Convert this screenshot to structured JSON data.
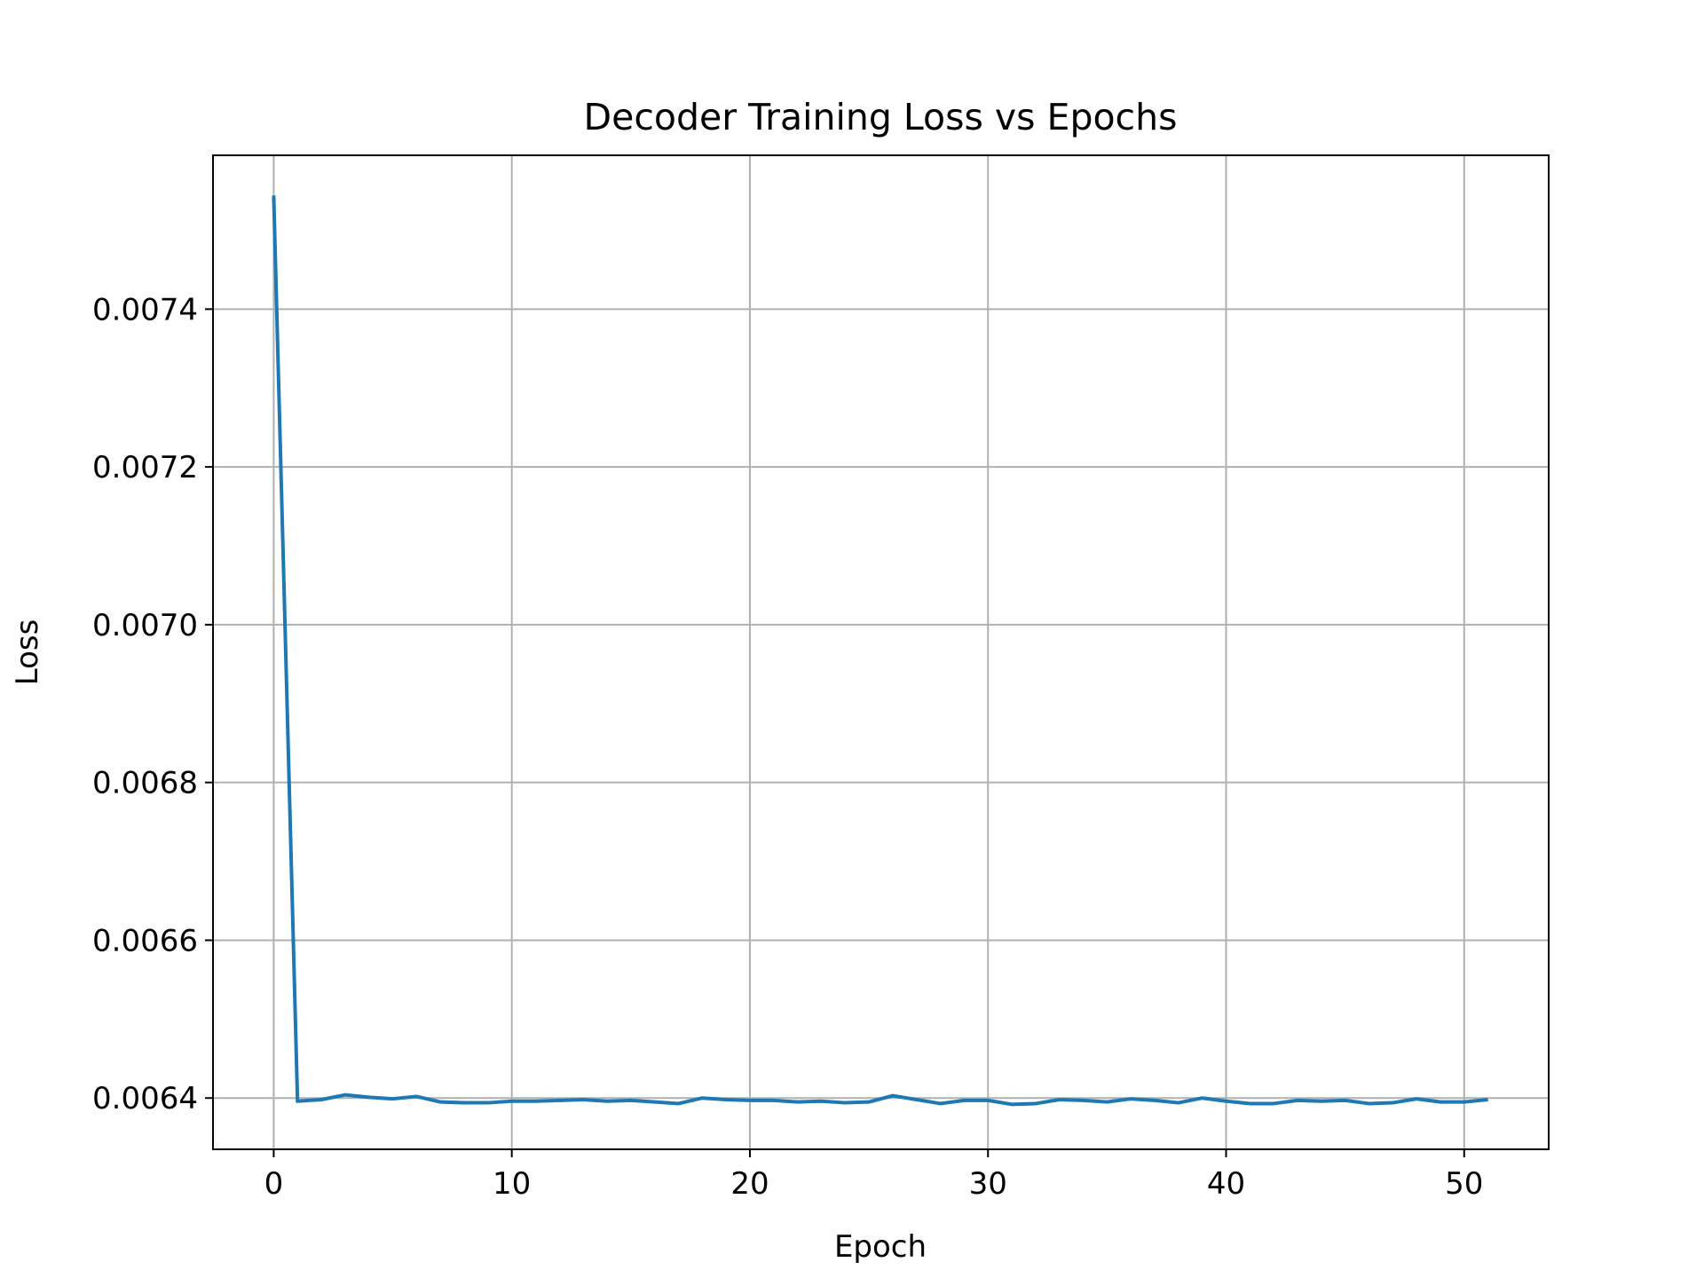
{
  "chart_data": {
    "type": "line",
    "title": "Decoder Training Loss vs Epochs",
    "xlabel": "Epoch",
    "ylabel": "Loss",
    "xlim": [
      -2.55,
      53.55
    ],
    "ylim": [
      0.006335,
      0.007595
    ],
    "x_ticks": [
      0,
      10,
      20,
      30,
      40,
      50
    ],
    "x_tick_labels": [
      "0",
      "10",
      "20",
      "30",
      "40",
      "50"
    ],
    "y_ticks": [
      0.0064,
      0.0066,
      0.0068,
      0.007,
      0.0072,
      0.0074
    ],
    "y_tick_labels": [
      "0.0064",
      "0.0066",
      "0.0068",
      "0.0070",
      "0.0072",
      "0.0074"
    ],
    "grid": true,
    "legend": "none",
    "series": [
      {
        "color": "#1f77b4",
        "x": [
          0,
          1,
          2,
          3,
          4,
          5,
          6,
          7,
          8,
          9,
          10,
          11,
          12,
          13,
          14,
          15,
          16,
          17,
          18,
          19,
          20,
          21,
          22,
          23,
          24,
          25,
          26,
          27,
          28,
          29,
          30,
          31,
          32,
          33,
          34,
          35,
          36,
          37,
          38,
          39,
          40,
          41,
          42,
          43,
          44,
          45,
          46,
          47,
          48,
          49,
          50,
          51
        ],
        "values": [
          0.007544,
          0.006396,
          0.006398,
          0.006404,
          0.006401,
          0.006399,
          0.006402,
          0.006395,
          0.006394,
          0.006394,
          0.006396,
          0.006396,
          0.006397,
          0.006398,
          0.006396,
          0.006397,
          0.006395,
          0.006393,
          0.0064,
          0.006398,
          0.006397,
          0.006397,
          0.006395,
          0.006396,
          0.006394,
          0.006395,
          0.006403,
          0.006398,
          0.006393,
          0.006397,
          0.006397,
          0.006392,
          0.006393,
          0.006398,
          0.006397,
          0.006395,
          0.006399,
          0.006397,
          0.006394,
          0.0064,
          0.006396,
          0.006393,
          0.006393,
          0.006397,
          0.006396,
          0.006397,
          0.006393,
          0.006394,
          0.006399,
          0.006395,
          0.006395,
          0.006398
        ]
      }
    ]
  }
}
